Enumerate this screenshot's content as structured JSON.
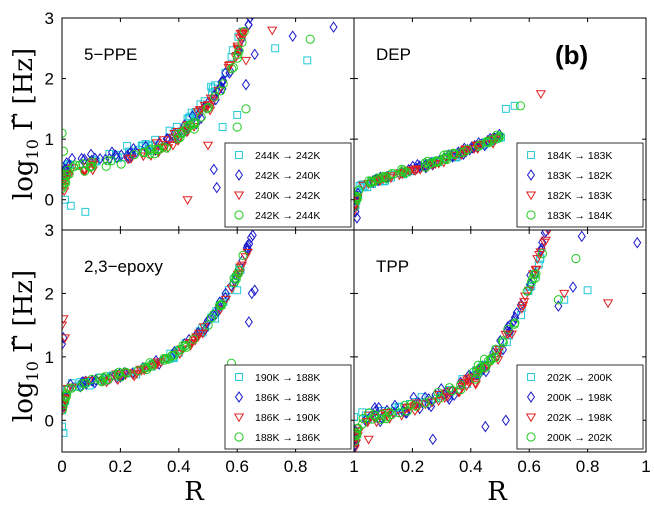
{
  "figure": {
    "tag": "(b)",
    "xlabel": "R",
    "ylabel_main": "log",
    "ylabel_sub": "10",
    "ylabel_tail": " Γ̃ [Hz]",
    "x_ticks": [
      "0",
      "0.2",
      "0.4",
      "0.6",
      "0.8",
      "1"
    ],
    "y_ticks": [
      "0",
      "1",
      "2",
      "3"
    ]
  },
  "chart_data": [
    {
      "type": "scatter",
      "title": "5−PPE",
      "xlabel": "R",
      "ylabel": "log10 Γ̃ [Hz]",
      "xlim": [
        0,
        1
      ],
      "ylim": [
        -0.5,
        3
      ],
      "series": [
        {
          "name": "244K → 242K",
          "color": "#22c8d8",
          "marker": "square",
          "curve": {
            "a": 0.55,
            "b": 0.9,
            "c": 2.1,
            "p": 4.2,
            "x0": 0.005,
            "x1": 0.62,
            "n": 55,
            "noise": 0.11
          },
          "extra": [
            [
              0.01,
              0.0
            ],
            [
              0.03,
              -0.1
            ],
            [
              0.08,
              -0.2
            ],
            [
              0.55,
              1.2
            ],
            [
              0.6,
              1.4
            ],
            [
              0.73,
              2.5
            ],
            [
              0.84,
              2.3
            ]
          ]
        },
        {
          "name": "242K → 240K",
          "color": "#1a1acc",
          "marker": "diamond",
          "curve": {
            "a": 0.6,
            "b": 0.7,
            "c": 2.0,
            "p": 4.5,
            "x0": 0.005,
            "x1": 0.66,
            "n": 75,
            "noise": 0.1
          },
          "extra": [
            [
              0.53,
              0.2
            ],
            [
              0.52,
              0.5
            ],
            [
              0.63,
              1.9
            ],
            [
              0.66,
              2.4
            ],
            [
              0.79,
              2.7
            ],
            [
              0.93,
              2.85
            ]
          ]
        },
        {
          "name": "240K → 242K",
          "color": "#e02020",
          "marker": "triangle-down",
          "curve": {
            "a": 0.45,
            "b": 0.8,
            "c": 2.2,
            "p": 4.2,
            "x0": 0.005,
            "x1": 0.66,
            "n": 70,
            "noise": 0.12
          },
          "extra": [
            [
              0.43,
              0.0
            ],
            [
              0.5,
              0.9
            ],
            [
              0.63,
              2.3
            ],
            [
              0.72,
              2.8
            ]
          ]
        },
        {
          "name": "242K → 244K",
          "color": "#22cc22",
          "marker": "circle",
          "curve": {
            "a": 0.5,
            "b": 0.7,
            "c": 2.1,
            "p": 4.4,
            "x0": 0.0,
            "x1": 0.64,
            "n": 60,
            "noise": 0.1
          },
          "extra": [
            [
              0.0,
              1.1
            ],
            [
              0.005,
              0.8
            ],
            [
              0.6,
              1.2
            ],
            [
              0.63,
              1.5
            ],
            [
              0.85,
              2.65
            ]
          ]
        }
      ]
    },
    {
      "type": "scatter",
      "title": "DEP",
      "xlabel": "R",
      "ylabel": "log10 Γ̃ [Hz]",
      "xlim": [
        0,
        1
      ],
      "ylim": [
        -0.5,
        3
      ],
      "series": [
        {
          "name": "184K → 183K",
          "color": "#22c8d8",
          "marker": "square",
          "curve": {
            "a": 0.2,
            "b": 1.35,
            "c": 0.3,
            "p": 2.5,
            "x0": 0.0,
            "x1": 0.52,
            "n": 55,
            "noise": 0.05
          },
          "extra": [
            [
              0.0,
              0.05
            ],
            [
              0.005,
              -0.1
            ],
            [
              0.52,
              1.5
            ],
            [
              0.55,
              1.55
            ]
          ]
        },
        {
          "name": "183K → 182K",
          "color": "#1a1acc",
          "marker": "diamond",
          "curve": {
            "a": 0.22,
            "b": 1.35,
            "c": 0.3,
            "p": 2.5,
            "x0": 0.0,
            "x1": 0.5,
            "n": 60,
            "noise": 0.05
          },
          "extra": [
            [
              0.0,
              0.0
            ],
            [
              0.005,
              -0.2
            ],
            [
              0.01,
              -0.3
            ]
          ]
        },
        {
          "name": "182K → 183K",
          "color": "#e02020",
          "marker": "triangle-down",
          "curve": {
            "a": 0.2,
            "b": 1.35,
            "c": 0.3,
            "p": 2.5,
            "x0": 0.0,
            "x1": 0.5,
            "n": 50,
            "noise": 0.05
          },
          "extra": [
            [
              0.64,
              1.75
            ],
            [
              0.0,
              -0.1
            ]
          ]
        },
        {
          "name": "183K → 184K",
          "color": "#22cc22",
          "marker": "circle",
          "curve": {
            "a": 0.22,
            "b": 1.35,
            "c": 0.3,
            "p": 2.5,
            "x0": 0.0,
            "x1": 0.5,
            "n": 55,
            "noise": 0.05
          },
          "extra": [
            [
              0.57,
              1.55
            ],
            [
              0.5,
              1.05
            ]
          ]
        }
      ]
    },
    {
      "type": "scatter",
      "title": "2,3−epoxy",
      "xlabel": "R",
      "ylabel": "log10 Γ̃ [Hz]",
      "xlim": [
        0,
        1
      ],
      "ylim": [
        -0.5,
        3
      ],
      "series": [
        {
          "name": "190K → 188K",
          "color": "#22c8d8",
          "marker": "square",
          "curve": {
            "a": 0.5,
            "b": 1.0,
            "c": 1.7,
            "p": 4.5,
            "x0": 0.0,
            "x1": 0.62,
            "n": 60,
            "noise": 0.06
          },
          "extra": [
            [
              0.0,
              -0.1
            ],
            [
              0.005,
              -0.2
            ],
            [
              0.6,
              2.05
            ]
          ]
        },
        {
          "name": "186K → 188K",
          "color": "#1a1acc",
          "marker": "diamond",
          "curve": {
            "a": 0.5,
            "b": 1.0,
            "c": 1.75,
            "p": 4.5,
            "x0": 0.0,
            "x1": 0.66,
            "n": 60,
            "noise": 0.06
          },
          "extra": [
            [
              0.0,
              1.2
            ],
            [
              0.005,
              1.3
            ],
            [
              0.64,
              1.55
            ],
            [
              0.65,
              2.0
            ],
            [
              0.66,
              2.05
            ]
          ]
        },
        {
          "name": "186K → 190K",
          "color": "#e02020",
          "marker": "triangle-down",
          "curve": {
            "a": 0.48,
            "b": 1.0,
            "c": 1.7,
            "p": 4.5,
            "x0": 0.0,
            "x1": 0.64,
            "n": 55,
            "noise": 0.06
          },
          "extra": [
            [
              0.0,
              1.5
            ],
            [
              0.005,
              1.6
            ],
            [
              0.01,
              1.3
            ]
          ]
        },
        {
          "name": "188K → 186K",
          "color": "#22cc22",
          "marker": "circle",
          "curve": {
            "a": 0.5,
            "b": 1.0,
            "c": 1.7,
            "p": 4.5,
            "x0": 0.0,
            "x1": 0.62,
            "n": 60,
            "noise": 0.06
          },
          "extra": [
            [
              0.6,
              0.7
            ],
            [
              0.58,
              0.9
            ],
            [
              0.62,
              2.6
            ]
          ]
        }
      ]
    },
    {
      "type": "scatter",
      "title": "TPP",
      "xlabel": "R",
      "ylabel": "log10 Γ̃ [Hz]",
      "xlim": [
        0,
        1
      ],
      "ylim": [
        -0.5,
        3
      ],
      "series": [
        {
          "name": "202K → 200K",
          "color": "#22c8d8",
          "marker": "square",
          "curve": {
            "a": 0.0,
            "b": 1.1,
            "c": 2.0,
            "p": 4.5,
            "x0": 0.0,
            "x1": 0.65,
            "n": 55,
            "noise": 0.1
          },
          "extra": [
            [
              0.0,
              0.05
            ],
            [
              0.8,
              2.05
            ],
            [
              0.72,
              1.9
            ]
          ]
        },
        {
          "name": "200K → 198K",
          "color": "#1a1acc",
          "marker": "diamond",
          "curve": {
            "a": 0.0,
            "b": 1.0,
            "c": 2.2,
            "p": 4.5,
            "x0": 0.0,
            "x1": 0.68,
            "n": 75,
            "noise": 0.15
          },
          "extra": [
            [
              0.27,
              -0.3
            ],
            [
              0.45,
              -0.1
            ],
            [
              0.52,
              0.0
            ],
            [
              0.7,
              1.8
            ],
            [
              0.75,
              2.1
            ],
            [
              0.78,
              2.9
            ],
            [
              0.97,
              2.8
            ]
          ]
        },
        {
          "name": "202K → 198K",
          "color": "#e02020",
          "marker": "triangle-down",
          "curve": {
            "a": -0.05,
            "b": 1.1,
            "c": 2.1,
            "p": 4.5,
            "x0": 0.0,
            "x1": 0.68,
            "n": 70,
            "noise": 0.12
          },
          "extra": [
            [
              0.0,
              -0.35
            ],
            [
              0.05,
              -0.3
            ],
            [
              0.72,
              2.0
            ],
            [
              0.87,
              1.85
            ]
          ]
        },
        {
          "name": "200K → 202K",
          "color": "#22cc22",
          "marker": "circle",
          "curve": {
            "a": 0.0,
            "b": 1.1,
            "c": 2.0,
            "p": 4.5,
            "x0": 0.0,
            "x1": 0.66,
            "n": 60,
            "noise": 0.1
          },
          "extra": [
            [
              0.76,
              2.55
            ],
            [
              0.7,
              1.9
            ]
          ]
        }
      ]
    }
  ]
}
